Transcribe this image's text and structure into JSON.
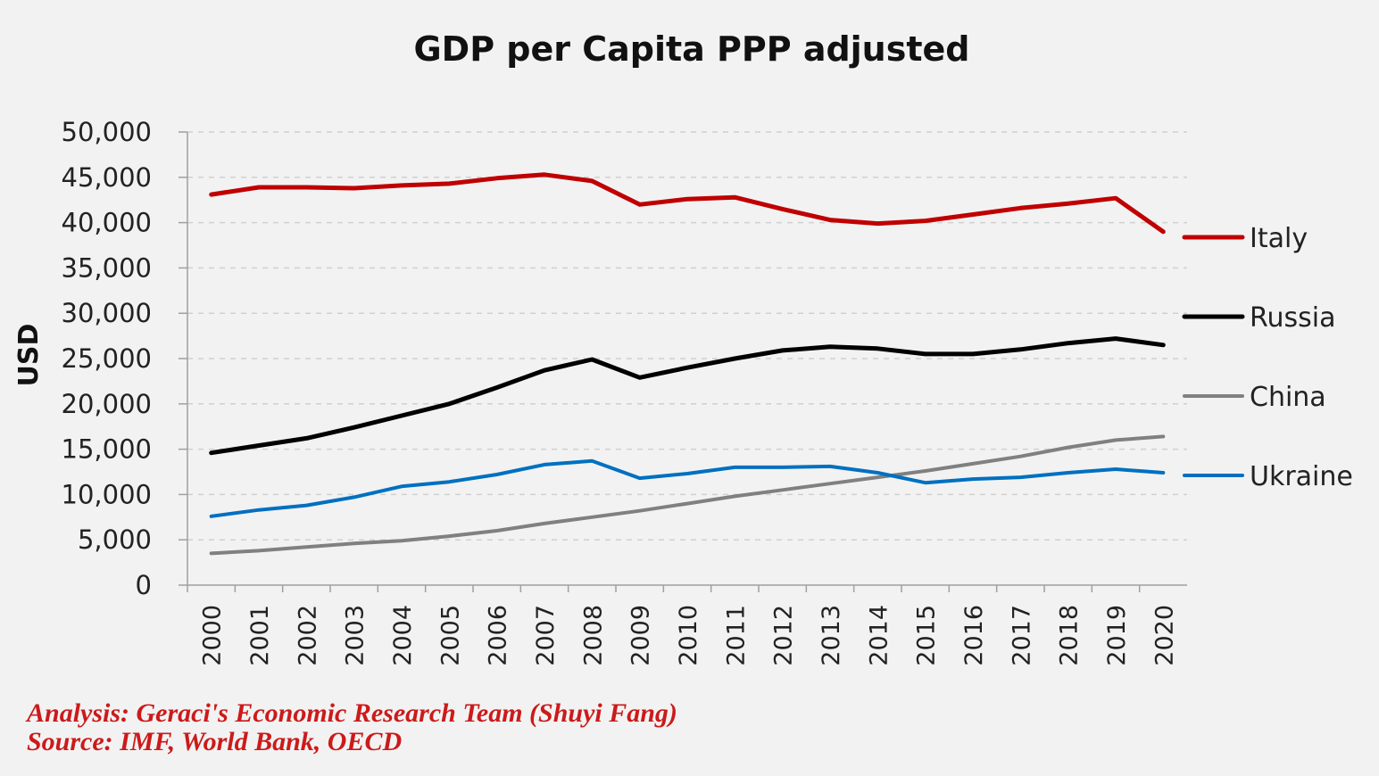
{
  "chart_data": {
    "type": "line",
    "title": "GDP per Capita PPP adjusted",
    "xlabel": "",
    "ylabel": "USD",
    "x": [
      "2000",
      "2001",
      "2002",
      "2003",
      "2004",
      "2005",
      "2006",
      "2007",
      "2008",
      "2009",
      "2010",
      "2011",
      "2012",
      "2013",
      "2014",
      "2015",
      "2016",
      "2017",
      "2018",
      "2019",
      "2020"
    ],
    "ylim": [
      0,
      50000
    ],
    "yticks": [
      0,
      5000,
      10000,
      15000,
      20000,
      25000,
      30000,
      35000,
      40000,
      45000,
      50000
    ],
    "ytick_labels": [
      "0",
      "5,000",
      "10,000",
      "15,000",
      "20,000",
      "25,000",
      "30,000",
      "35,000",
      "40,000",
      "45,000",
      "50,000"
    ],
    "grid": "horizontal dashed",
    "legend_position": "right",
    "series": [
      {
        "name": "Italy",
        "color": "#c00000",
        "values": [
          43100,
          43900,
          43900,
          43800,
          44100,
          44300,
          44900,
          45300,
          44600,
          42000,
          42600,
          42800,
          41500,
          40300,
          39900,
          40200,
          40900,
          41600,
          42100,
          42700,
          39000
        ]
      },
      {
        "name": "Russia",
        "color": "#000000",
        "values": [
          14600,
          15400,
          16200,
          17400,
          18700,
          20000,
          21800,
          23700,
          24900,
          22900,
          24000,
          25000,
          25900,
          26300,
          26100,
          25500,
          25500,
          26000,
          26700,
          27200,
          26500
        ]
      },
      {
        "name": "China",
        "color": "#808080",
        "values": [
          3500,
          3800,
          4200,
          4600,
          4900,
          5400,
          6000,
          6800,
          7500,
          8200,
          9000,
          9800,
          10500,
          11200,
          11900,
          12600,
          13400,
          14200,
          15200,
          16000,
          16400
        ]
      },
      {
        "name": "Ukraine",
        "color": "#0070c0",
        "values": [
          7600,
          8300,
          8800,
          9700,
          10900,
          11400,
          12200,
          13300,
          13700,
          11800,
          12300,
          13000,
          13000,
          13100,
          12400,
          11300,
          11700,
          11900,
          12400,
          12800,
          12400
        ]
      }
    ]
  },
  "footnotes": {
    "analysis": "Analysis: Geraci's Economic Research Team (Shuyi Fang)",
    "source": "Source: IMF, World Bank, OECD"
  }
}
